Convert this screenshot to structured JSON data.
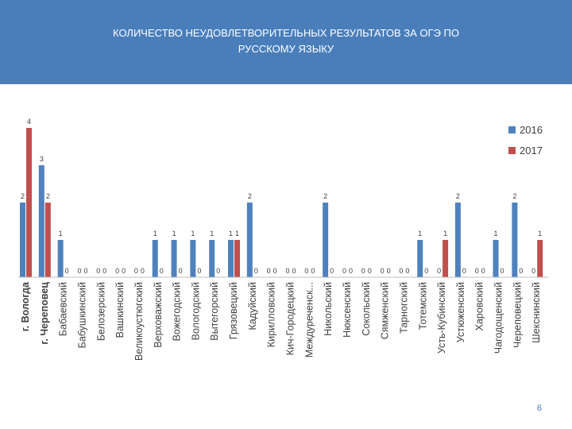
{
  "header": {
    "title_line1": "КОЛИЧЕСТВО  НЕУДОВЛЕТВОРИТЕЛЬНЫХ РЕЗУЛЬТАТОВ ЗА ОГЭ  ПО",
    "title_line2": "РУССКОМУ ЯЗЫКУ"
  },
  "page_number": "6",
  "colors": {
    "header_bg": "#4a7ebb",
    "series_2016": "#4f81bd",
    "series_2017": "#c0504d"
  },
  "chart_data": {
    "type": "bar",
    "title": "КОЛИЧЕСТВО  НЕУДОВЛЕТВОРИТЕЛЬНЫХ РЕЗУЛЬТАТОВ ЗА ОГЭ  ПО РУССКОМУ ЯЗЫКУ",
    "categories": [
      "г. Вологда",
      "г. Череповец",
      "Бабаевский",
      "Бабушкинский",
      "Белозерский",
      "Вашкинский",
      "Великоустюгский",
      "Верховажский",
      "Вожегодский",
      "Вологодский",
      "Вытегорский",
      "Грязовецкий",
      "Кадуйский",
      "Кирилловский",
      "Кич-Городецкий",
      "Междуреченск...",
      "Никольский",
      "Нюксенский",
      "Сокольский",
      "Сямженский",
      "Тарногский",
      "Тотемский",
      "Усть-Кубинский",
      "Устюженский",
      "Харовский",
      "Чагодощенский",
      "Череповецкий",
      "Шекснинский"
    ],
    "series": [
      {
        "name": "2016",
        "values": [
          2,
          3,
          1,
          0,
          0,
          0,
          0,
          1,
          1,
          1,
          1,
          1,
          2,
          0,
          0,
          0,
          2,
          0,
          0,
          0,
          0,
          1,
          0,
          2,
          0,
          1,
          2,
          0
        ]
      },
      {
        "name": "2017",
        "values": [
          4,
          2,
          0,
          0,
          0,
          0,
          0,
          0,
          0,
          0,
          0,
          1,
          0,
          0,
          0,
          0,
          0,
          0,
          0,
          0,
          0,
          0,
          1,
          0,
          0,
          0,
          0,
          1
        ]
      }
    ],
    "ylim": [
      0,
      4
    ],
    "grid": false,
    "legend": "top-right"
  }
}
